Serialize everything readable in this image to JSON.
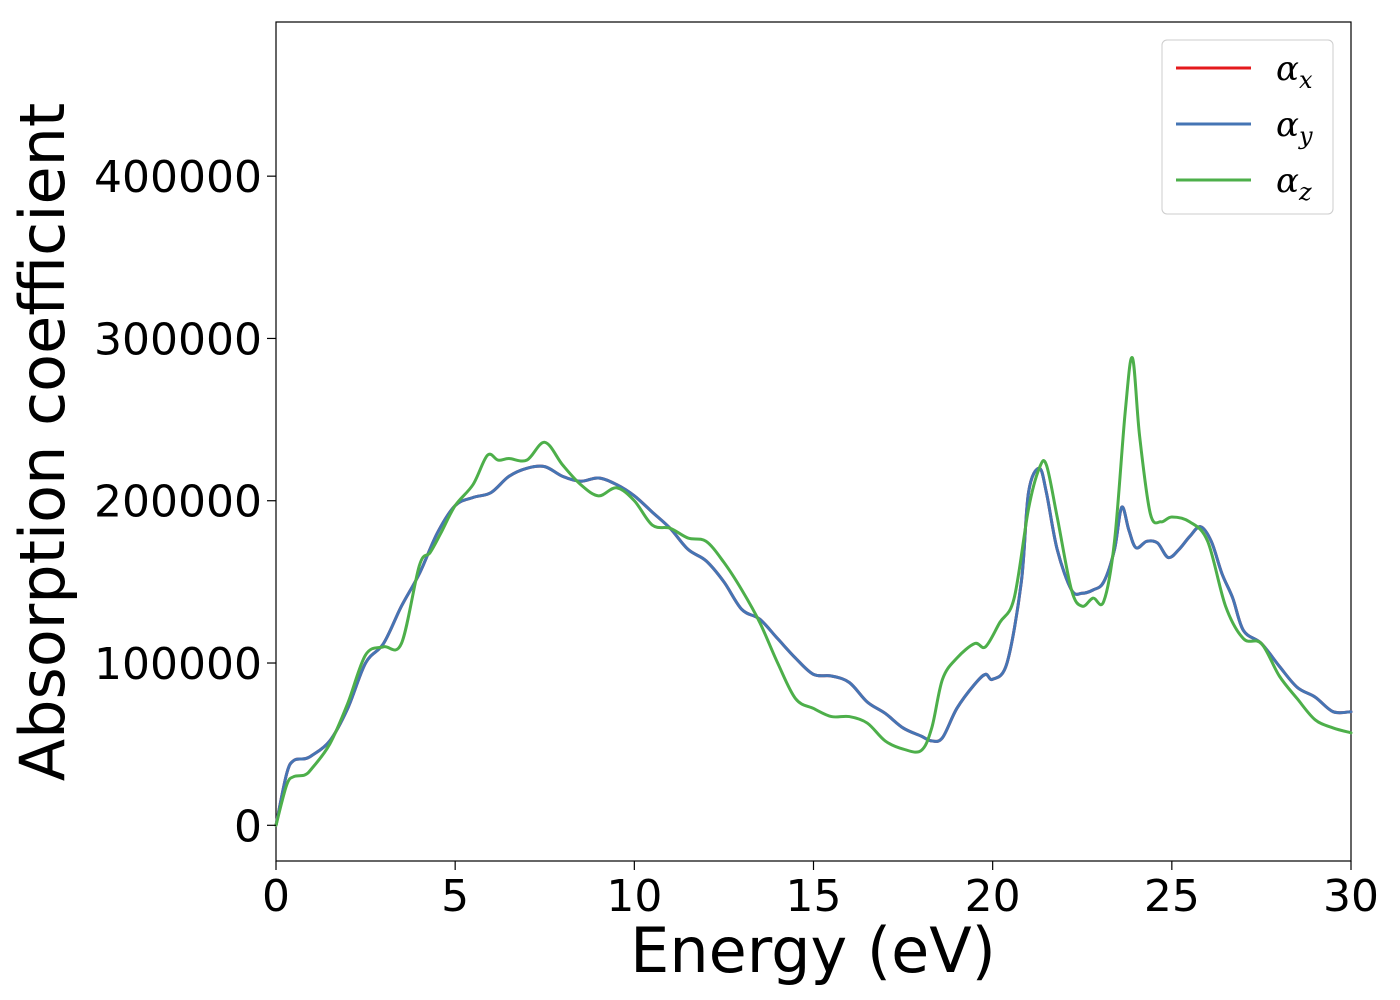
{
  "chart_data": {
    "type": "line",
    "title": "",
    "xlabel": "Energy (eV)",
    "ylabel": "Absorption coefficient",
    "xlim": [
      0,
      30
    ],
    "ylim": [
      -22000,
      495000
    ],
    "xticks": [
      0,
      5,
      10,
      15,
      20,
      25,
      30
    ],
    "xtick_labels": [
      "0",
      "5",
      "10",
      "15",
      "20",
      "25",
      "30"
    ],
    "yticks": [
      0,
      100000,
      200000,
      300000,
      400000
    ],
    "ytick_labels": [
      "0",
      "100000",
      "200000",
      "300000",
      "400000"
    ],
    "grid": false,
    "legend_position": "top-right",
    "series": [
      {
        "name": "α",
        "subscript": "x",
        "color": "#e41a1c",
        "x": [
          0,
          0.3,
          0.5,
          0.8,
          1.0,
          1.5,
          2.0,
          2.5,
          3.0,
          3.5,
          4.0,
          4.5,
          5.0,
          5.5,
          6.0,
          6.5,
          7.0,
          7.5,
          8.0,
          8.5,
          9.0,
          9.5,
          10.0,
          10.5,
          11.0,
          11.5,
          12.0,
          12.5,
          13.0,
          13.5,
          14.0,
          14.5,
          15.0,
          15.5,
          16.0,
          16.5,
          17.0,
          17.5,
          18.0,
          18.3,
          18.6,
          19.0,
          19.5,
          19.8,
          20.0,
          20.4,
          20.8,
          21.0,
          21.3,
          21.5,
          21.8,
          22.2,
          22.5,
          22.8,
          23.1,
          23.4,
          23.6,
          23.8,
          24.0,
          24.3,
          24.6,
          24.9,
          25.2,
          25.5,
          25.8,
          26.1,
          26.4,
          26.7,
          27.0,
          27.5,
          28.0,
          28.5,
          29.0,
          29.5,
          30.0
        ],
        "values": [
          0,
          32000,
          40000,
          41000,
          43000,
          52000,
          72000,
          100000,
          112000,
          135000,
          155000,
          180000,
          197000,
          202000,
          205000,
          215000,
          220000,
          221000,
          215000,
          212000,
          214000,
          210000,
          203000,
          193000,
          183000,
          170000,
          163000,
          150000,
          133000,
          127000,
          115000,
          103000,
          93000,
          92000,
          88000,
          76000,
          69000,
          60000,
          55000,
          52000,
          54000,
          72000,
          87000,
          93000,
          90000,
          100000,
          150000,
          205000,
          220000,
          205000,
          170000,
          145000,
          143000,
          145000,
          150000,
          170000,
          196000,
          182000,
          171000,
          175000,
          174000,
          165000,
          170000,
          178000,
          184000,
          175000,
          155000,
          140000,
          120000,
          112000,
          98000,
          85000,
          79000,
          70000,
          70000
        ]
      },
      {
        "name": "α",
        "subscript": "y",
        "color": "#4575b4",
        "x": [
          0,
          0.3,
          0.5,
          0.8,
          1.0,
          1.5,
          2.0,
          2.5,
          3.0,
          3.5,
          4.0,
          4.5,
          5.0,
          5.5,
          6.0,
          6.5,
          7.0,
          7.5,
          8.0,
          8.5,
          9.0,
          9.5,
          10.0,
          10.5,
          11.0,
          11.5,
          12.0,
          12.5,
          13.0,
          13.5,
          14.0,
          14.5,
          15.0,
          15.5,
          16.0,
          16.5,
          17.0,
          17.5,
          18.0,
          18.3,
          18.6,
          19.0,
          19.5,
          19.8,
          20.0,
          20.4,
          20.8,
          21.0,
          21.3,
          21.5,
          21.8,
          22.2,
          22.5,
          22.8,
          23.1,
          23.4,
          23.6,
          23.8,
          24.0,
          24.3,
          24.6,
          24.9,
          25.2,
          25.5,
          25.8,
          26.1,
          26.4,
          26.7,
          27.0,
          27.5,
          28.0,
          28.5,
          29.0,
          29.5,
          30.0
        ],
        "values": [
          0,
          32000,
          40000,
          41000,
          43000,
          52000,
          72000,
          100000,
          112000,
          135000,
          155000,
          180000,
          197000,
          202000,
          205000,
          215000,
          220000,
          221000,
          215000,
          212000,
          214000,
          210000,
          203000,
          193000,
          183000,
          170000,
          163000,
          150000,
          133000,
          127000,
          115000,
          103000,
          93000,
          92000,
          88000,
          76000,
          69000,
          60000,
          55000,
          52000,
          54000,
          72000,
          87000,
          93000,
          90000,
          100000,
          150000,
          205000,
          220000,
          205000,
          170000,
          145000,
          143000,
          145000,
          150000,
          170000,
          196000,
          182000,
          171000,
          175000,
          174000,
          165000,
          170000,
          178000,
          184000,
          175000,
          155000,
          140000,
          120000,
          112000,
          98000,
          85000,
          79000,
          70000,
          70000
        ]
      },
      {
        "name": "α",
        "subscript": "z",
        "color": "#4daf4a",
        "x": [
          0,
          0.3,
          0.5,
          0.8,
          1.0,
          1.5,
          2.0,
          2.5,
          3.0,
          3.5,
          4.0,
          4.3,
          4.6,
          5.0,
          5.5,
          5.9,
          6.2,
          6.5,
          7.0,
          7.5,
          8.0,
          8.5,
          9.0,
          9.5,
          10.0,
          10.5,
          11.0,
          11.5,
          12.0,
          12.5,
          13.0,
          13.5,
          14.0,
          14.5,
          15.0,
          15.5,
          16.0,
          16.5,
          17.0,
          17.5,
          18.0,
          18.3,
          18.6,
          19.0,
          19.5,
          19.8,
          20.2,
          20.6,
          21.0,
          21.3,
          21.5,
          21.8,
          22.2,
          22.5,
          22.8,
          23.1,
          23.4,
          23.7,
          23.9,
          24.1,
          24.4,
          24.7,
          25.0,
          25.5,
          26.0,
          26.5,
          27.0,
          27.5,
          28.0,
          28.5,
          29.0,
          29.5,
          30.0
        ],
        "values": [
          0,
          25000,
          30000,
          31000,
          35000,
          50000,
          75000,
          105000,
          110000,
          112000,
          160000,
          168000,
          180000,
          197000,
          210000,
          228000,
          225000,
          226000,
          225000,
          236000,
          222000,
          210000,
          203000,
          208000,
          200000,
          185000,
          183000,
          177000,
          175000,
          162000,
          145000,
          125000,
          100000,
          78000,
          72000,
          67000,
          67000,
          63000,
          52000,
          47000,
          46000,
          60000,
          90000,
          103000,
          112000,
          110000,
          125000,
          140000,
          195000,
          220000,
          222000,
          190000,
          145000,
          135000,
          140000,
          138000,
          175000,
          255000,
          288000,
          240000,
          192000,
          187000,
          190000,
          187000,
          175000,
          135000,
          115000,
          112000,
          92000,
          78000,
          65000,
          60000,
          57000
        ]
      }
    ]
  }
}
